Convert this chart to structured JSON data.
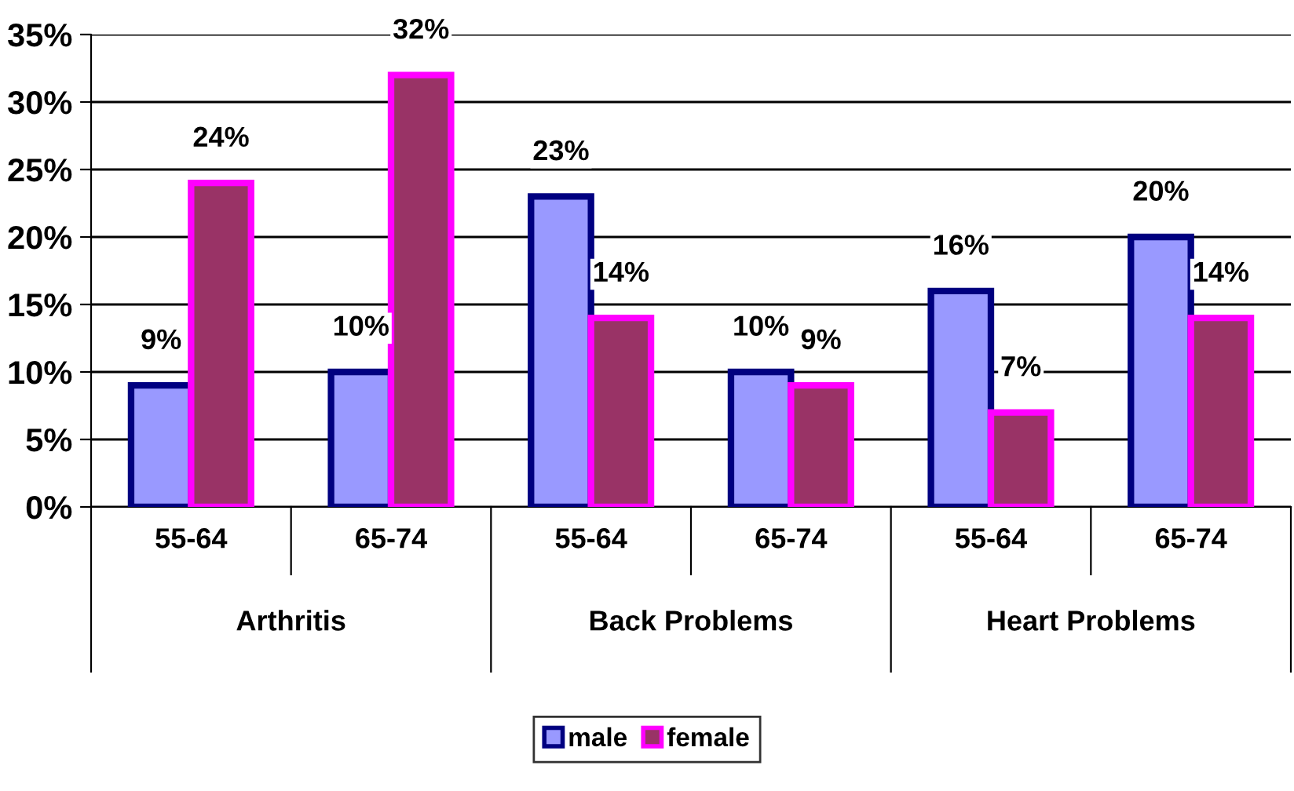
{
  "chart_data": {
    "type": "bar",
    "categories": [
      "55-64",
      "65-74",
      "55-64",
      "65-74",
      "55-64",
      "65-74"
    ],
    "series": [
      {
        "name": "male",
        "color": "#9999ff",
        "values": [
          9,
          10,
          23,
          10,
          16,
          20
        ],
        "value_labels": [
          "9%",
          "10%",
          "23%",
          "10%",
          "16%",
          "20%"
        ]
      },
      {
        "name": "female",
        "color": "#993366",
        "values": [
          24,
          32,
          14,
          9,
          7,
          14
        ],
        "value_labels": [
          "24%",
          "32%",
          "14%",
          "9%",
          "7%",
          "14%"
        ]
      }
    ],
    "annotations": [
      "Arthritis",
      "Back Problems",
      "Heart Problems"
    ],
    "ylim": [
      0,
      35
    ],
    "yticks": [
      {
        "value": 0,
        "label": "0%"
      },
      {
        "value": 5,
        "label": "5%"
      },
      {
        "value": 10,
        "label": "10%"
      },
      {
        "value": 15,
        "label": "15%"
      },
      {
        "value": 20,
        "label": "20%"
      },
      {
        "value": 25,
        "label": "25%"
      },
      {
        "value": 30,
        "label": "30%"
      },
      {
        "value": 35,
        "label": "35%"
      }
    ],
    "grid": "y",
    "legend": "bottom"
  }
}
